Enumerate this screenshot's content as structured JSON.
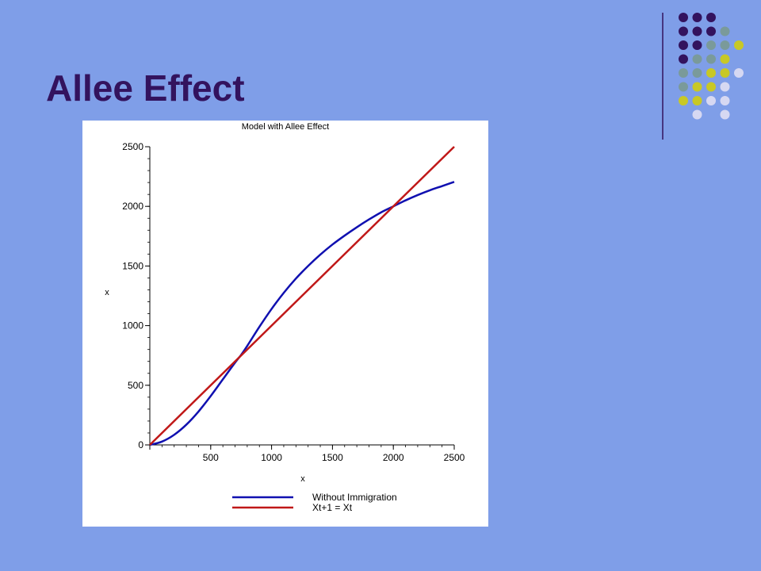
{
  "slide": {
    "title": "Allee Effect",
    "background": "#7f9ee8",
    "title_color": "#33135e",
    "decor_dot_colors": [
      "#33135e",
      "#7a9a9a",
      "#c8c826",
      "#d6d8f2"
    ]
  },
  "chart_data": {
    "type": "line",
    "title": "Model with Allee Effect",
    "xlabel": "x",
    "ylabel": "x",
    "xlim": [
      0,
      2500
    ],
    "ylim": [
      0,
      2500
    ],
    "xticks": [
      0,
      500,
      1000,
      1500,
      2000,
      2500
    ],
    "yticks": [
      0,
      500,
      1000,
      1500,
      2000,
      2500
    ],
    "grid": false,
    "legend_position": "bottom",
    "series": [
      {
        "name": "Without Immigration",
        "color": "#1010b0",
        "x": [
          0,
          100,
          200,
          300,
          400,
          500,
          600,
          700,
          750,
          800,
          900,
          1000,
          1100,
          1200,
          1300,
          1400,
          1500,
          1600,
          1700,
          1800,
          1900,
          2000,
          2100,
          2200,
          2300,
          2400,
          2500
        ],
        "y": [
          0,
          28,
          85,
          170,
          280,
          410,
          550,
          690,
          755,
          830,
          990,
          1140,
          1275,
          1395,
          1500,
          1595,
          1680,
          1755,
          1825,
          1890,
          1950,
          2000,
          2050,
          2095,
          2135,
          2170,
          2205
        ]
      },
      {
        "name": "Xt+1 = Xt",
        "color": "#c01818",
        "x": [
          0,
          2500
        ],
        "y": [
          0,
          2500
        ]
      }
    ]
  }
}
